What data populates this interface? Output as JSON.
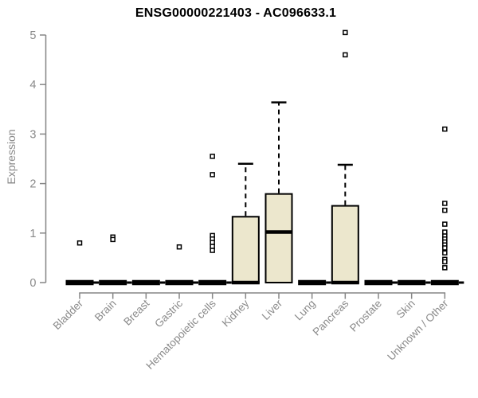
{
  "chart_data": {
    "type": "boxplot",
    "title": "ENSG00000221403 - AC096633.1",
    "ylabel": "Expression",
    "ylim": [
      0,
      5
    ],
    "yticks": [
      0,
      1,
      2,
      3,
      4,
      5
    ],
    "grid": false,
    "legend": "none",
    "categories": [
      "Bladder",
      "Brain",
      "Breast",
      "Gastric",
      "Hematopoietic cells",
      "Kidney",
      "Liver",
      "Lung",
      "Pancreas",
      "Prostate",
      "Skin",
      "Unknown / Other"
    ],
    "boxes": [
      {
        "category": "Bladder",
        "q1": 0,
        "median": 0,
        "q3": 0,
        "whisker_low": 0,
        "whisker_high": 0,
        "outliers": [
          0.8
        ]
      },
      {
        "category": "Brain",
        "q1": 0,
        "median": 0,
        "q3": 0,
        "whisker_low": 0,
        "whisker_high": 0,
        "outliers": [
          0.92,
          0.87
        ]
      },
      {
        "category": "Breast",
        "q1": 0,
        "median": 0,
        "q3": 0,
        "whisker_low": 0,
        "whisker_high": 0,
        "outliers": []
      },
      {
        "category": "Gastric",
        "q1": 0,
        "median": 0,
        "q3": 0,
        "whisker_low": 0,
        "whisker_high": 0,
        "outliers": [
          0.72
        ]
      },
      {
        "category": "Hematopoietic cells",
        "q1": 0,
        "median": 0,
        "q3": 0,
        "whisker_low": 0,
        "whisker_high": 0,
        "outliers": [
          2.55,
          2.18,
          0.95,
          0.88,
          0.81,
          0.73,
          0.65
        ]
      },
      {
        "category": "Kidney",
        "q1": 0,
        "median": 0,
        "q3": 1.33,
        "whisker_low": 0,
        "whisker_high": 2.4,
        "outliers": []
      },
      {
        "category": "Liver",
        "q1": 0,
        "median": 1.02,
        "q3": 1.79,
        "whisker_low": 0,
        "whisker_high": 3.64,
        "outliers": []
      },
      {
        "category": "Lung",
        "q1": 0,
        "median": 0,
        "q3": 0,
        "whisker_low": 0,
        "whisker_high": 0,
        "outliers": []
      },
      {
        "category": "Pancreas",
        "q1": 0,
        "median": 0,
        "q3": 1.55,
        "whisker_low": 0,
        "whisker_high": 2.38,
        "outliers": [
          5.05,
          4.6
        ]
      },
      {
        "category": "Prostate",
        "q1": 0,
        "median": 0,
        "q3": 0,
        "whisker_low": 0,
        "whisker_high": 0,
        "outliers": []
      },
      {
        "category": "Skin",
        "q1": 0,
        "median": 0,
        "q3": 0,
        "whisker_low": 0,
        "whisker_high": 0,
        "outliers": []
      },
      {
        "category": "Unknown / Other",
        "q1": 0,
        "median": 0,
        "q3": 0,
        "whisker_low": 0,
        "whisker_high": 0,
        "outliers": [
          3.1,
          1.6,
          1.46,
          1.18,
          1.02,
          0.94,
          0.88,
          0.82,
          0.76,
          0.7,
          0.6,
          0.47,
          0.42,
          0.3
        ]
      }
    ],
    "colors": {
      "box_fill": "#ECE7CD",
      "box_border": "#000000",
      "median": "#000000",
      "whisker": "#000000",
      "outlier_stroke": "#000000",
      "outlier_fill": "#ffffff",
      "axis": "#868686",
      "tick_label": "#8a8a8a",
      "title": "#000000",
      "background": "#ffffff"
    }
  }
}
